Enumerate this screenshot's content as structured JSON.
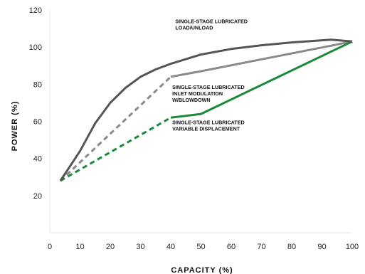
{
  "chart_data": {
    "type": "line",
    "title": "",
    "xlabel": "CAPACITY (%)",
    "ylabel": "POWER (%)",
    "xlim": [
      0,
      100
    ],
    "ylim": [
      0,
      120
    ],
    "x_ticks": [
      "0",
      "10",
      "20",
      "30",
      "40",
      "50",
      "60",
      "70",
      "80",
      "90",
      "100"
    ],
    "y_ticks": [
      "20",
      "40",
      "60",
      "80",
      "100",
      "120"
    ],
    "grid": false,
    "series": [
      {
        "name": "SINGLE-STAGE LUBRICATED LOAD/UNLOAD",
        "color": "#555555",
        "style": "solid",
        "x": [
          3.5,
          10,
          15,
          20,
          25,
          30,
          35,
          40,
          50,
          60,
          70,
          80,
          93,
          100
        ],
        "y": [
          28,
          44,
          59,
          70,
          78,
          84,
          88,
          91,
          96,
          99,
          101,
          102.5,
          104,
          103
        ]
      },
      {
        "name": "SINGLE-STAGE LUBRICATED INLET MODULATION W/BLOWDOWN",
        "color": "#8a8a8a",
        "segments": [
          {
            "style": "dashed",
            "x": [
              3.5,
              40
            ],
            "y": [
              28,
              84
            ]
          },
          {
            "style": "solid",
            "x": [
              40,
              50,
              100
            ],
            "y": [
              84,
              87,
              103
            ]
          }
        ]
      },
      {
        "name": "SINGLE-STAGE LUBRICATED VARIABLE DISPLACEMENT",
        "color": "#1a8a3a",
        "segments": [
          {
            "style": "dashed",
            "x": [
              3.5,
              40
            ],
            "y": [
              28,
              62
            ]
          },
          {
            "style": "solid",
            "x": [
              40,
              50,
              100
            ],
            "y": [
              62,
              64,
              103
            ]
          }
        ]
      }
    ],
    "annotations": [
      {
        "lines": [
          "SINGLE-STAGE LUBRICATED",
          "LOAD/UNLOAD"
        ],
        "x": 41.5,
        "y": 113
      },
      {
        "lines": [
          "SINGLE-STAGE LUBRICATED",
          "INLET MODULATION",
          "W/BLOWDOWN"
        ],
        "x": 40.5,
        "y": 77.5
      },
      {
        "lines": [
          "SINGLE-STAGE LUBRICATED",
          "VARIABLE DISPLACEMENT"
        ],
        "x": 40.5,
        "y": 58.5
      }
    ]
  }
}
